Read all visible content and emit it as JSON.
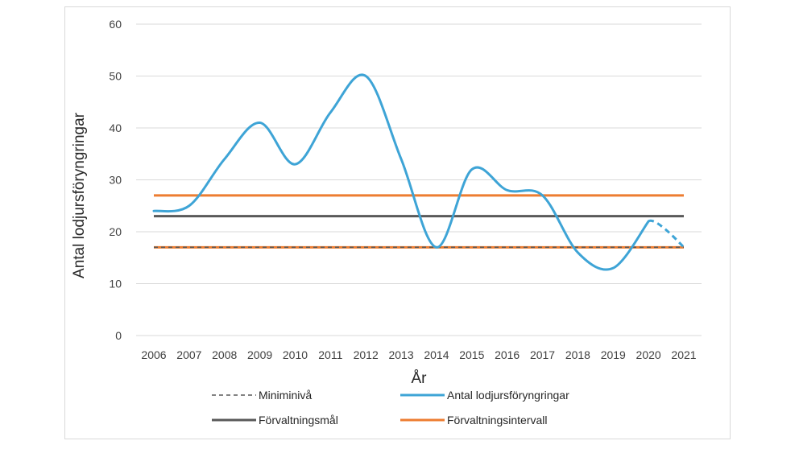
{
  "chart_data": {
    "type": "line",
    "xlabel": "År",
    "ylabel": "Antal lodjursföryngringar",
    "ylim": [
      0,
      60
    ],
    "yticks": [
      0,
      10,
      20,
      30,
      40,
      50,
      60
    ],
    "categories": [
      "2006",
      "2007",
      "2008",
      "2009",
      "2010",
      "2011",
      "2012",
      "2013",
      "2014",
      "2015",
      "2016",
      "2017",
      "2018",
      "2019",
      "2020",
      "2021"
    ],
    "grid": "horizontal",
    "legend_position": "bottom",
    "series": [
      {
        "name": "Miniminivå",
        "style": "dashed",
        "color": "#595959",
        "values": [
          17,
          17,
          17,
          17,
          17,
          17,
          17,
          17,
          17,
          17,
          17,
          17,
          17,
          17,
          17,
          17
        ]
      },
      {
        "name": "Antal lodjursföryngringar",
        "style": "solid",
        "color": "#3ea4d6",
        "values": [
          24,
          25,
          34,
          41,
          33,
          43,
          50,
          34,
          17,
          32,
          28,
          27,
          16,
          13,
          22,
          17
        ],
        "dashed_last_segment": true
      },
      {
        "name": "Förvaltningsmål",
        "style": "solid",
        "color": "#595959",
        "values": [
          23,
          23,
          23,
          23,
          23,
          23,
          23,
          23,
          23,
          23,
          23,
          23,
          23,
          23,
          23,
          23
        ]
      },
      {
        "name": "Förvaltningsintervall",
        "style": "solid",
        "color": "#ed7d31",
        "values": [
          27,
          27,
          27,
          27,
          27,
          27,
          27,
          27,
          27,
          27,
          27,
          27,
          27,
          27,
          27,
          27
        ],
        "lower_bound": 17
      }
    ]
  }
}
